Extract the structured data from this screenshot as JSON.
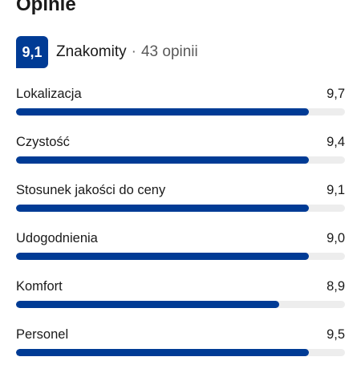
{
  "reviews": {
    "title": "Opinie",
    "score": "9,1",
    "rating_word": "Znakomity",
    "separator": "·",
    "count_text": "43 opinii",
    "categories": [
      {
        "label": "Lokalizacja",
        "score": "9,7",
        "value": 9.7
      },
      {
        "label": "Czystość",
        "score": "9,4",
        "value": 9.4
      },
      {
        "label": "Stosunek jakości do ceny",
        "score": "9,1",
        "value": 9.1
      },
      {
        "label": "Udogodnienia",
        "score": "9,0",
        "value": 9.0
      },
      {
        "label": "Komfort",
        "score": "8,9",
        "value": 8.9
      },
      {
        "label": "Personel",
        "score": "9,5",
        "value": 9.5
      }
    ],
    "bar_fill_fraction": [
      0.89,
      0.89,
      0.89,
      0.89,
      0.8,
      0.89
    ]
  },
  "colors": {
    "brand": "#003b95",
    "track": "#ededed"
  }
}
